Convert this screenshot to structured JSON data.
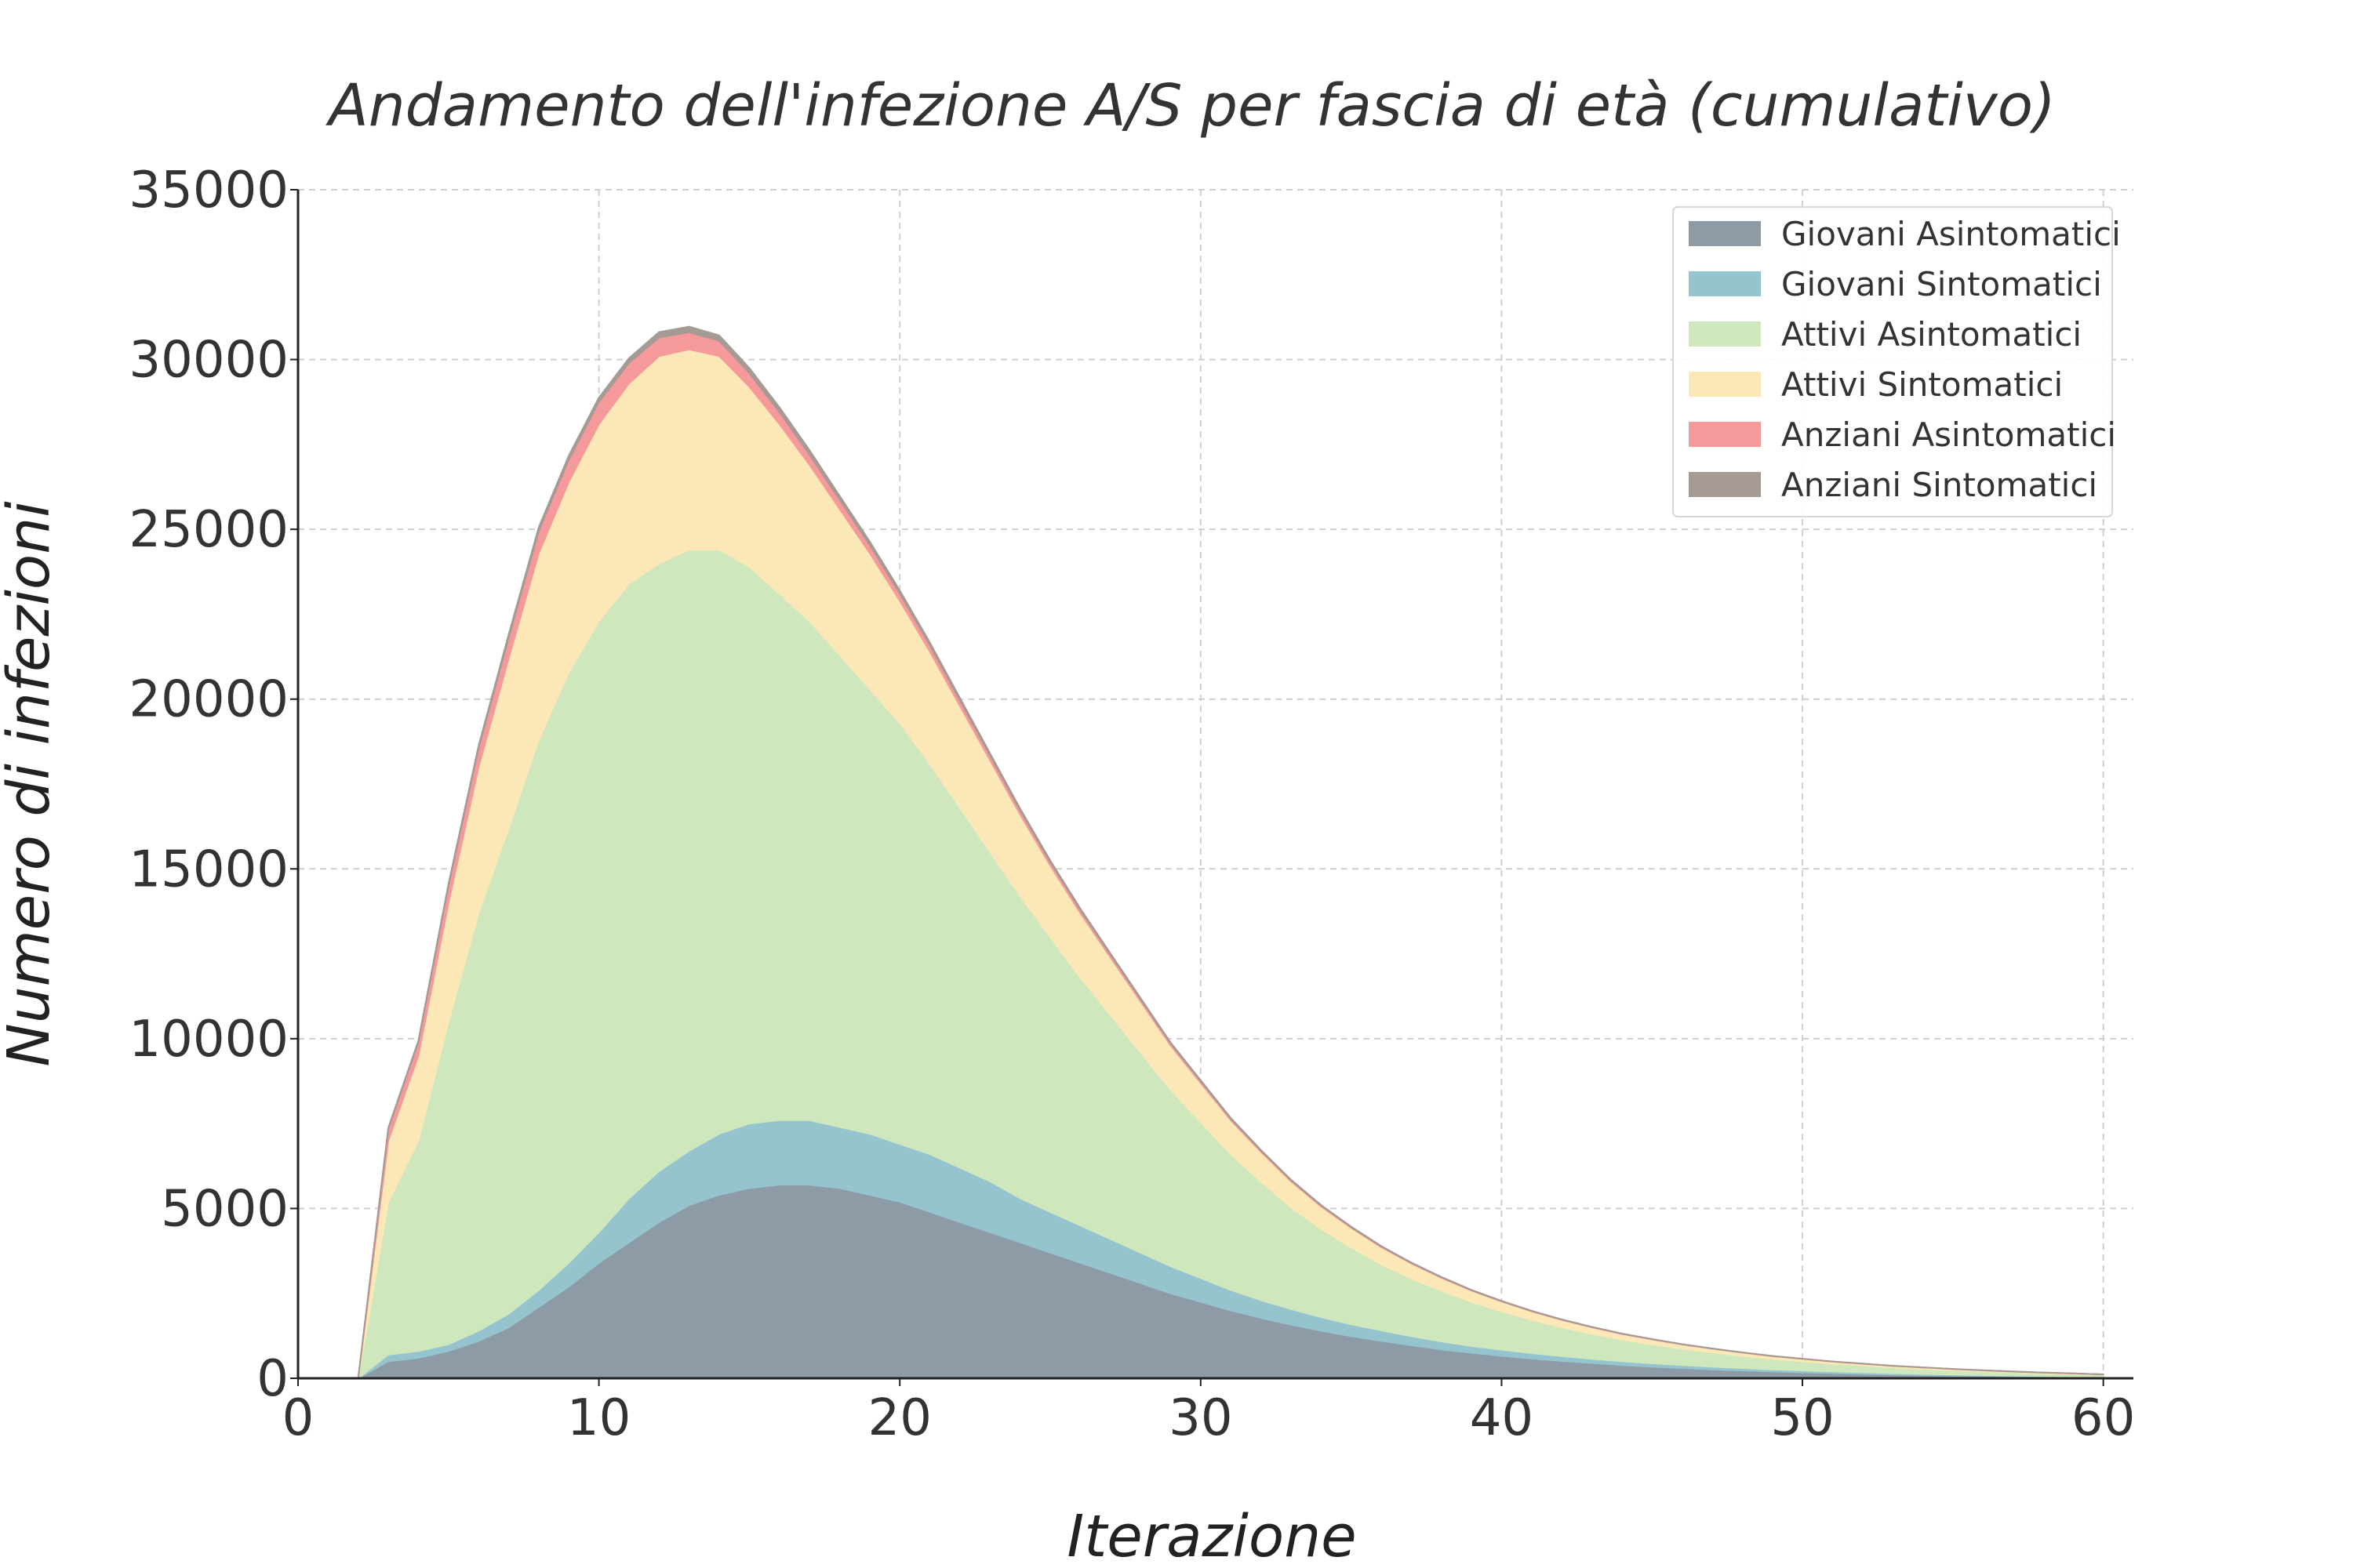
{
  "chart_data": {
    "type": "area",
    "stacked": true,
    "title": "Andamento dell'infezione A/S per fascia di età (cumulativo)",
    "xlabel": "Iterazione",
    "ylabel": "Numero di infezioni",
    "xlim": [
      0,
      61
    ],
    "ylim": [
      0,
      35000
    ],
    "xticks": [
      0,
      10,
      20,
      30,
      40,
      50,
      60
    ],
    "yticks": [
      0,
      5000,
      10000,
      15000,
      20000,
      25000,
      30000,
      35000
    ],
    "grid": true,
    "legend_position": "top-right",
    "x": [
      2,
      3,
      4,
      5,
      6,
      7,
      8,
      9,
      10,
      11,
      12,
      13,
      14,
      15,
      16,
      17,
      18,
      19,
      20,
      21,
      22,
      23,
      24,
      25,
      26,
      27,
      28,
      29,
      30,
      31,
      32,
      33,
      34,
      35,
      36,
      37,
      38,
      39,
      40,
      41,
      42,
      43,
      44,
      45,
      46,
      47,
      48,
      49,
      50,
      51,
      52,
      53,
      54,
      55,
      56,
      57,
      58,
      59,
      60
    ],
    "series": [
      {
        "name": "Giovani Asintomatici",
        "color": "#8c9ba5",
        "values": [
          0,
          500,
          600,
          800,
          1100,
          1500,
          2100,
          2700,
          3400,
          4000,
          4600,
          5100,
          5400,
          5600,
          5700,
          5700,
          5600,
          5400,
          5200,
          4900,
          4600,
          4300,
          4000,
          3700,
          3400,
          3100,
          2800,
          2500,
          2250,
          2000,
          1780,
          1580,
          1400,
          1240,
          1100,
          970,
          850,
          750,
          660,
          580,
          510,
          450,
          390,
          340,
          300,
          260,
          230,
          200,
          175,
          150,
          130,
          110,
          95,
          80,
          70,
          60,
          50,
          40,
          30
        ]
      },
      {
        "name": "Giovani Sintomatici",
        "color": "#95c4cf",
        "values": [
          0,
          200,
          200,
          200,
          300,
          400,
          500,
          700,
          900,
          1300,
          1500,
          1600,
          1800,
          1900,
          1900,
          1900,
          1800,
          1800,
          1700,
          1700,
          1600,
          1500,
          1300,
          1200,
          1100,
          1000,
          900,
          800,
          700,
          600,
          520,
          460,
          400,
          350,
          310,
          270,
          230,
          200,
          180,
          160,
          140,
          120,
          110,
          100,
          90,
          80,
          70,
          60,
          55,
          50,
          45,
          40,
          35,
          30,
          25,
          20,
          18,
          15,
          10
        ]
      },
      {
        "name": "Attivi Asintomatici",
        "color": "#cfe7bd",
        "values": [
          0,
          4500,
          6200,
          9500,
          12300,
          14300,
          16200,
          17400,
          18000,
          18100,
          17900,
          17700,
          17200,
          16400,
          15500,
          14700,
          13900,
          13100,
          12400,
          11500,
          10600,
          9700,
          8900,
          8100,
          7300,
          6600,
          5900,
          5200,
          4600,
          4000,
          3500,
          3000,
          2600,
          2260,
          1950,
          1700,
          1500,
          1300,
          1130,
          980,
          850,
          740,
          640,
          560,
          480,
          420,
          360,
          310,
          270,
          230,
          200,
          170,
          150,
          130,
          110,
          95,
          80,
          70,
          60
        ]
      },
      {
        "name": "Attivi Sintomatici",
        "color": "#fbe8b6",
        "values": [
          0,
          1800,
          2500,
          3500,
          4300,
          5000,
          5500,
          5600,
          5800,
          5900,
          6100,
          5900,
          5700,
          5300,
          5000,
          4600,
          4300,
          4000,
          3600,
          3300,
          3000,
          2700,
          2400,
          2100,
          1900,
          1700,
          1500,
          1300,
          1150,
          1000,
          870,
          760,
          660,
          580,
          500,
          440,
          380,
          330,
          290,
          250,
          220,
          190,
          165,
          145,
          125,
          110,
          95,
          82,
          70,
          60,
          52,
          45,
          38,
          32,
          27,
          22,
          18,
          15,
          12
        ]
      },
      {
        "name": "Anziani Asintomatici",
        "color": "#f5999b",
        "values": [
          0,
          350,
          400,
          500,
          550,
          600,
          650,
          650,
          650,
          600,
          550,
          500,
          450,
          400,
          350,
          300,
          270,
          240,
          210,
          185,
          160,
          140,
          120,
          105,
          92,
          80,
          70,
          61,
          53,
          46,
          40,
          35,
          30,
          26,
          23,
          20,
          17,
          15,
          13,
          11,
          10,
          9,
          8,
          7,
          6,
          5,
          5,
          4,
          4,
          3,
          3,
          3,
          2,
          2,
          2,
          2,
          2,
          2,
          2
        ]
      },
      {
        "name": "Anziani Sintomatici",
        "color": "#a69a94",
        "values": [
          0,
          30,
          40,
          60,
          80,
          100,
          110,
          120,
          130,
          140,
          160,
          170,
          160,
          150,
          140,
          130,
          115,
          100,
          90,
          80,
          70,
          60,
          52,
          45,
          39,
          34,
          29,
          25,
          22,
          19,
          16,
          14,
          12,
          10,
          9,
          8,
          7,
          6,
          5,
          5,
          4,
          4,
          3,
          3,
          3,
          2,
          2,
          2,
          2,
          2,
          1,
          1,
          1,
          1,
          1,
          1,
          1,
          1,
          1
        ]
      }
    ]
  }
}
